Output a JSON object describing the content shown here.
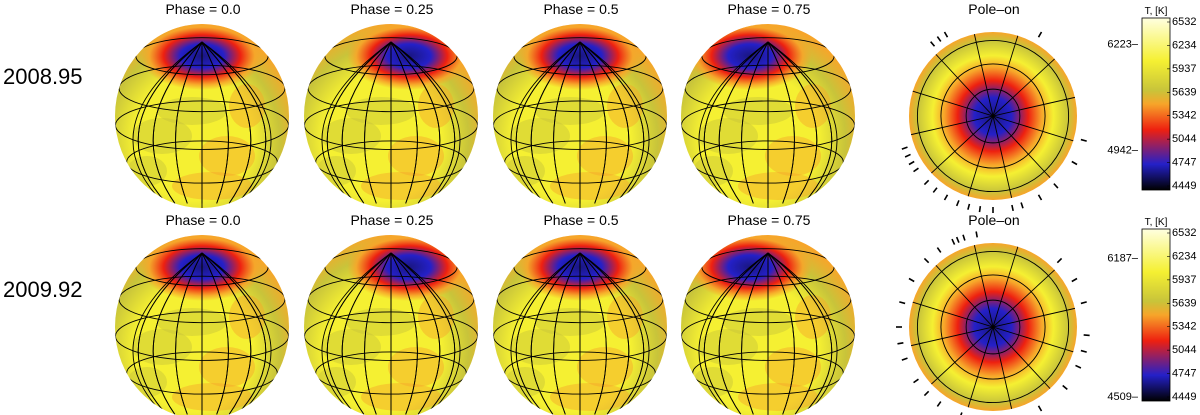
{
  "rows": [
    {
      "epoch": "2008.95",
      "panels": [
        "Phase = 0.0",
        "Phase = 0.25",
        "Phase = 0.5",
        "Phase = 0.75",
        "Pole–on"
      ],
      "spot_phase": [
        0.0,
        0.25,
        0.5,
        0.75
      ],
      "colorbar": {
        "unit": "T, [K]",
        "min": 4449,
        "max": 6532,
        "ticks": [
          "6532",
          "6234",
          "5937",
          "5639",
          "5342",
          "5044",
          "4747",
          "4449"
        ],
        "side_labels": [
          {
            "value": 6223,
            "text": "6223–"
          },
          {
            "value": 4942,
            "text": "4942–"
          }
        ]
      }
    },
    {
      "epoch": "2009.92",
      "panels": [
        "Phase = 0.0",
        "Phase = 0.25",
        "Phase = 0.5",
        "Phase = 0.75",
        "Pole–on"
      ],
      "spot_phase": [
        0.0,
        0.25,
        0.5,
        0.75
      ],
      "colorbar": {
        "unit": "T, [K]",
        "min": 4449,
        "max": 6532,
        "ticks": [
          "6532",
          "6234",
          "5937",
          "5639",
          "5342",
          "5044",
          "4747",
          "4449"
        ],
        "side_labels": [
          {
            "value": 6187,
            "text": "6187–"
          },
          {
            "value": 4509,
            "text": "4509–"
          }
        ]
      }
    }
  ],
  "colors": {
    "hot": "#ffffe0",
    "yellow": "#f5f032",
    "olive": "#c8c43a",
    "orange": "#f7a52a",
    "red": "#ee2010",
    "blue": "#2420c8",
    "cold": "#000000"
  }
}
